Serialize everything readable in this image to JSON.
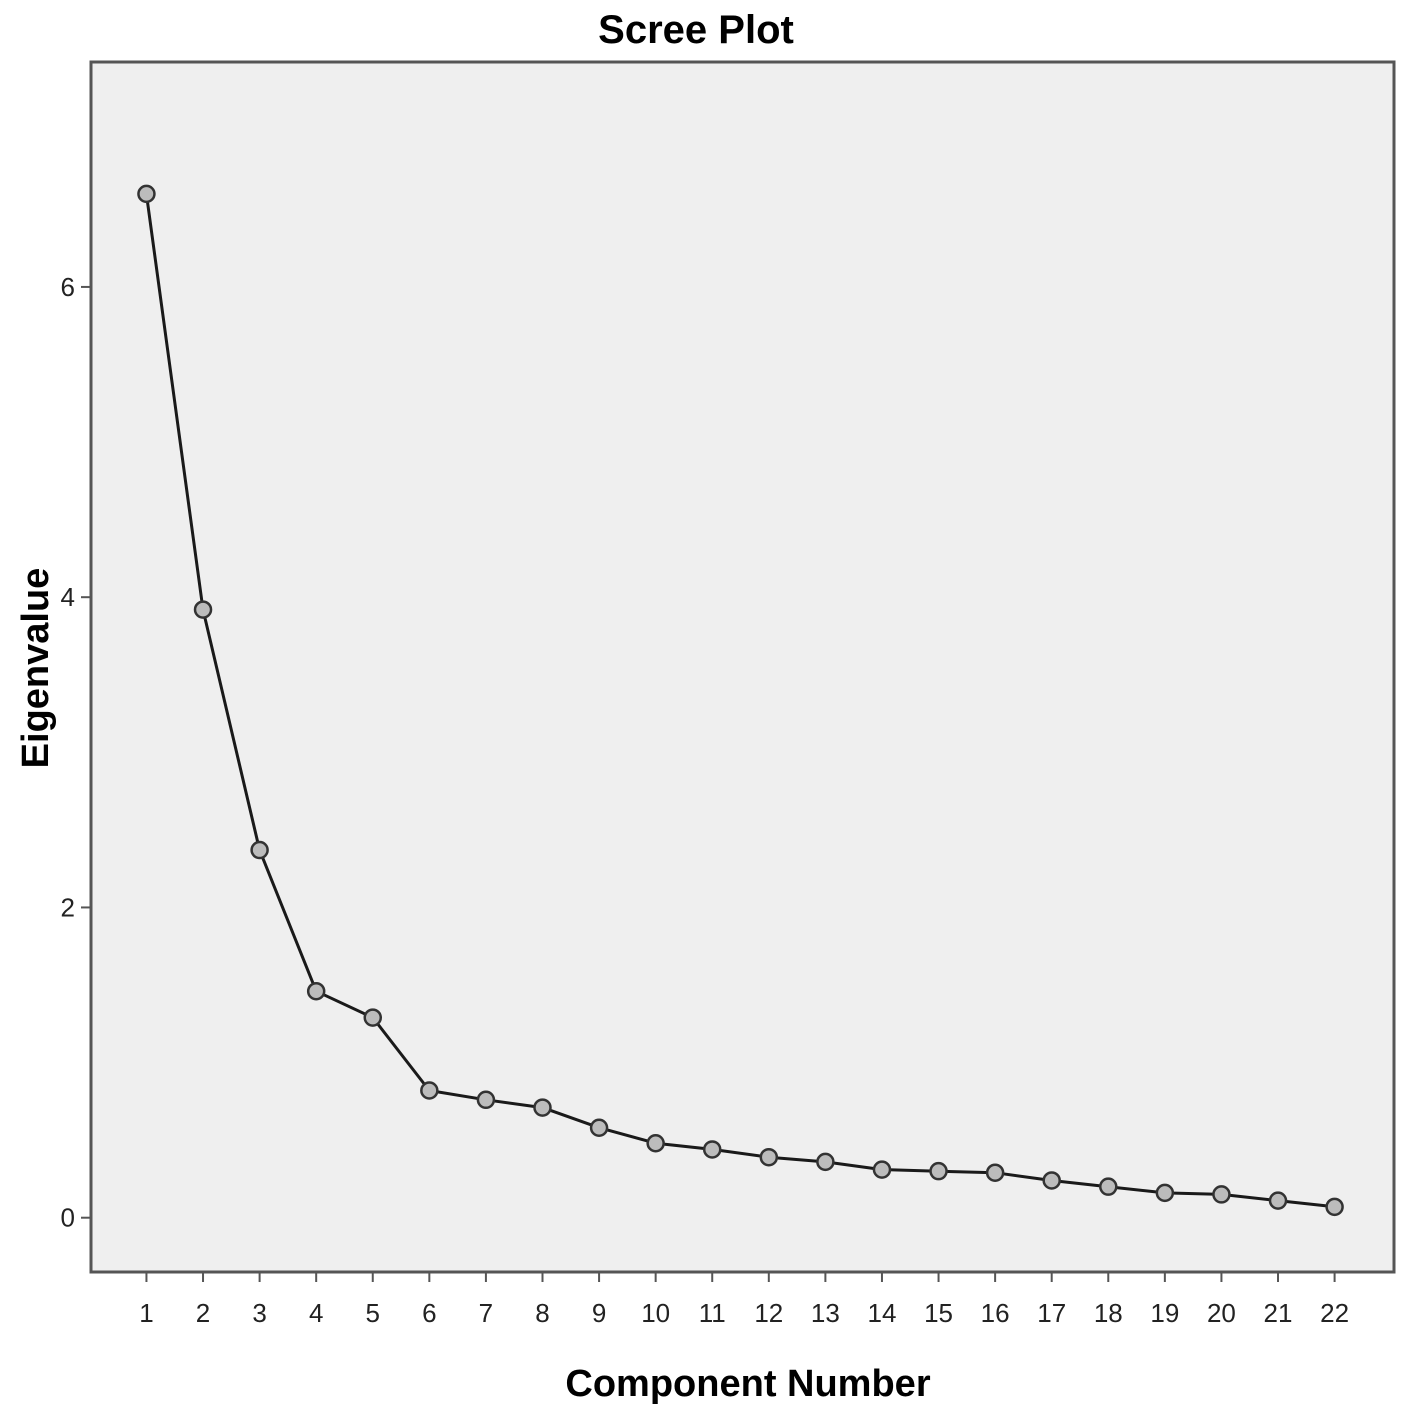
{
  "chart_data": {
    "type": "line",
    "title": "Scree Plot",
    "xlabel": "Component Number",
    "ylabel": "Eigenvalue",
    "x": [
      1,
      2,
      3,
      4,
      5,
      6,
      7,
      8,
      9,
      10,
      11,
      12,
      13,
      14,
      15,
      16,
      17,
      18,
      19,
      20,
      21,
      22
    ],
    "x_tick_labels": [
      "1",
      "2",
      "3",
      "4",
      "5",
      "6",
      "7",
      "8",
      "9",
      "10",
      "11",
      "12",
      "13",
      "14",
      "15",
      "16",
      "17",
      "18",
      "19",
      "20",
      "21",
      "22"
    ],
    "y_tick_values": [
      0,
      2,
      4,
      6
    ],
    "y_tick_labels": [
      "0",
      "2",
      "4",
      "6"
    ],
    "ylim": [
      -0.35,
      7.45
    ],
    "xlim": [
      0.02,
      23.05
    ],
    "grid": false,
    "legend": "none",
    "series": [
      {
        "values": [
          6.6,
          3.92,
          2.37,
          1.46,
          1.29,
          0.82,
          0.76,
          0.71,
          0.58,
          0.48,
          0.44,
          0.39,
          0.36,
          0.31,
          0.3,
          0.29,
          0.24,
          0.2,
          0.16,
          0.15,
          0.11,
          0.07
        ],
        "marker": "circle"
      }
    ],
    "colors": {
      "plot_background": "#efefef",
      "frame": "#555555",
      "line": "#1a1a1a",
      "marker_fill": "#bcbcbc",
      "marker_stroke": "#333333"
    }
  }
}
